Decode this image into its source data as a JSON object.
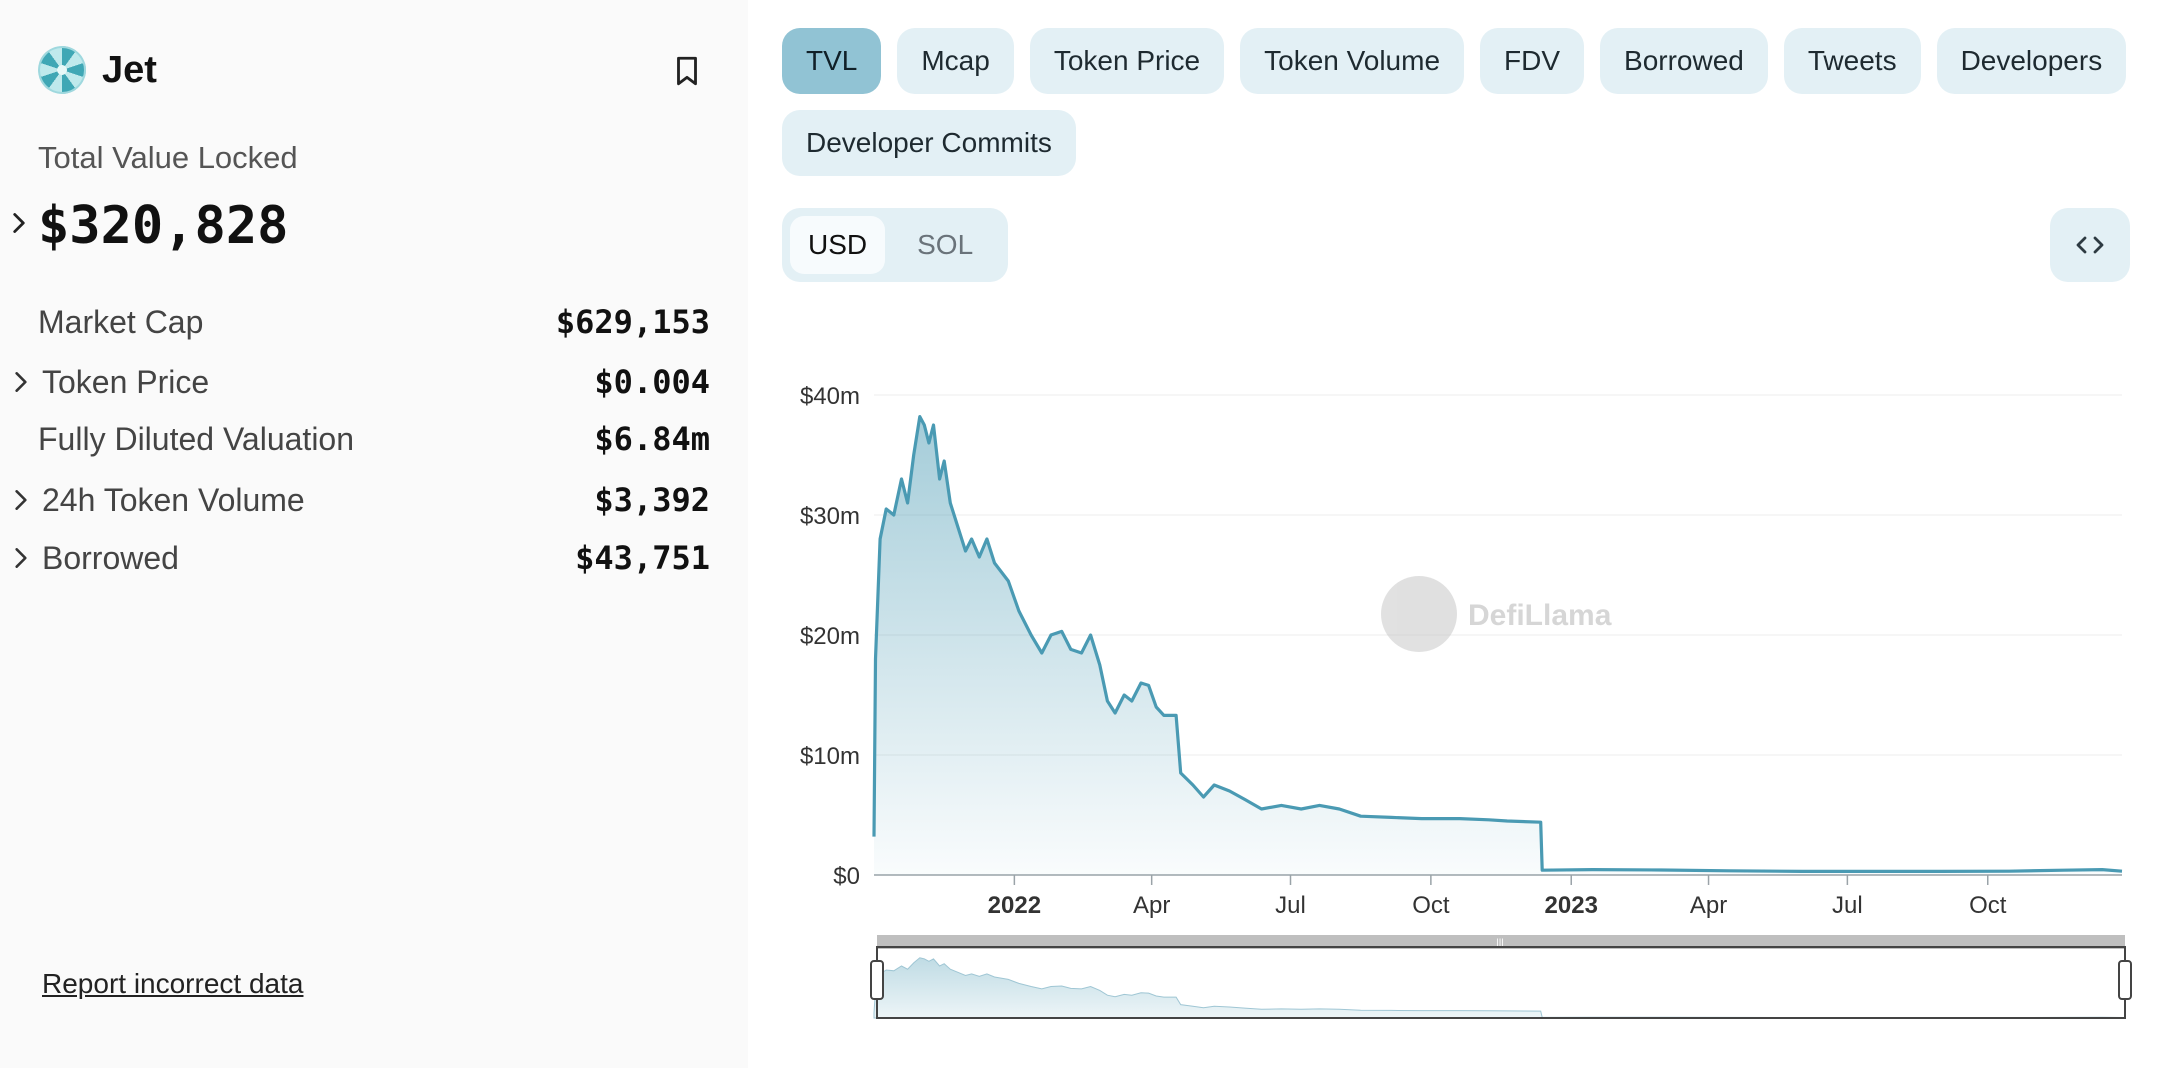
{
  "project": {
    "name": "Jet",
    "logo_icon": "jet-protocol-logo"
  },
  "summary": {
    "tvl_label": "Total Value Locked",
    "tvl_value": "$320,828",
    "stats": [
      {
        "label": "Market Cap",
        "value": "$629,153",
        "expandable": false
      },
      {
        "label": "Token Price",
        "value": "$0.004",
        "expandable": true
      },
      {
        "label": "Fully Diluted Valuation",
        "value": "$6.84m",
        "expandable": false
      },
      {
        "label": "24h Token Volume",
        "value": "$3,392",
        "expandable": true
      },
      {
        "label": "Borrowed",
        "value": "$43,751",
        "expandable": true
      }
    ],
    "report_link": "Report incorrect data"
  },
  "metric_tabs": [
    {
      "label": "TVL",
      "active": true
    },
    {
      "label": "Mcap",
      "active": false
    },
    {
      "label": "Token Price",
      "active": false
    },
    {
      "label": "Token Volume",
      "active": false
    },
    {
      "label": "FDV",
      "active": false
    },
    {
      "label": "Borrowed",
      "active": false
    },
    {
      "label": "Tweets",
      "active": false
    },
    {
      "label": "Developers",
      "active": false
    },
    {
      "label": "Developer Commits",
      "active": false
    }
  ],
  "denominations": [
    {
      "label": "USD",
      "active": true
    },
    {
      "label": "SOL",
      "active": false
    }
  ],
  "embed_icon": "code-brackets-icon",
  "watermarks": [
    "DefiLlama"
  ],
  "colors": {
    "line": "#4a9ab3",
    "tab_bg": "#e3f0f5",
    "tab_active": "#91c3d4"
  },
  "chart_data": {
    "type": "area",
    "series": [
      {
        "name": "TVL",
        "points": [
          [
            "2021-10-01",
            3.2
          ],
          [
            "2021-10-02",
            18
          ],
          [
            "2021-10-05",
            28
          ],
          [
            "2021-10-09",
            30.5
          ],
          [
            "2021-10-14",
            30
          ],
          [
            "2021-10-19",
            33
          ],
          [
            "2021-10-23",
            31
          ],
          [
            "2021-10-27",
            35
          ],
          [
            "2021-10-31",
            38.2
          ],
          [
            "2021-11-03",
            37.5
          ],
          [
            "2021-11-06",
            36
          ],
          [
            "2021-11-09",
            37.5
          ],
          [
            "2021-11-13",
            33
          ],
          [
            "2021-11-16",
            34.5
          ],
          [
            "2021-11-20",
            31
          ],
          [
            "2021-11-25",
            29
          ],
          [
            "2021-11-30",
            27
          ],
          [
            "2021-12-04",
            28
          ],
          [
            "2021-12-09",
            26.5
          ],
          [
            "2021-12-14",
            28
          ],
          [
            "2021-12-19",
            26
          ],
          [
            "2021-12-28",
            24.5
          ],
          [
            "2022-01-04",
            22
          ],
          [
            "2022-01-12",
            20
          ],
          [
            "2022-01-19",
            18.5
          ],
          [
            "2022-01-25",
            20
          ],
          [
            "2022-02-01",
            20.3
          ],
          [
            "2022-02-07",
            18.8
          ],
          [
            "2022-02-14",
            18.5
          ],
          [
            "2022-02-20",
            20
          ],
          [
            "2022-02-26",
            17.5
          ],
          [
            "2022-03-03",
            14.5
          ],
          [
            "2022-03-08",
            13.5
          ],
          [
            "2022-03-14",
            15
          ],
          [
            "2022-03-19",
            14.5
          ],
          [
            "2022-03-25",
            16
          ],
          [
            "2022-03-30",
            15.8
          ],
          [
            "2022-04-04",
            14
          ],
          [
            "2022-04-09",
            13.3
          ],
          [
            "2022-04-17",
            13.3
          ],
          [
            "2022-04-20",
            8.5
          ],
          [
            "2022-04-28",
            7.5
          ],
          [
            "2022-05-05",
            6.5
          ],
          [
            "2022-05-12",
            7.5
          ],
          [
            "2022-05-22",
            7
          ],
          [
            "2022-06-01",
            6.3
          ],
          [
            "2022-06-12",
            5.5
          ],
          [
            "2022-06-25",
            5.8
          ],
          [
            "2022-07-08",
            5.5
          ],
          [
            "2022-07-20",
            5.8
          ],
          [
            "2022-08-02",
            5.5
          ],
          [
            "2022-08-16",
            4.9
          ],
          [
            "2022-09-05",
            4.8
          ],
          [
            "2022-09-25",
            4.7
          ],
          [
            "2022-10-20",
            4.7
          ],
          [
            "2022-11-08",
            4.6
          ],
          [
            "2022-11-20",
            4.5
          ],
          [
            "2022-12-12",
            4.4
          ],
          [
            "2022-12-13",
            0.4
          ],
          [
            "2023-01-15",
            0.45
          ],
          [
            "2023-03-01",
            0.42
          ],
          [
            "2023-04-15",
            0.35
          ],
          [
            "2023-06-01",
            0.3
          ],
          [
            "2023-07-15",
            0.3
          ],
          [
            "2023-09-01",
            0.3
          ],
          [
            "2023-10-15",
            0.32
          ],
          [
            "2023-11-20",
            0.4
          ],
          [
            "2023-12-15",
            0.45
          ],
          [
            "2023-12-28",
            0.32
          ]
        ]
      }
    ],
    "x_ticks": [
      {
        "date": "2022-01-01",
        "label": "2022",
        "bold": true
      },
      {
        "date": "2022-04-01",
        "label": "Apr",
        "bold": false
      },
      {
        "date": "2022-07-01",
        "label": "Jul",
        "bold": false
      },
      {
        "date": "2022-10-01",
        "label": "Oct",
        "bold": false
      },
      {
        "date": "2023-01-01",
        "label": "2023",
        "bold": true
      },
      {
        "date": "2023-04-01",
        "label": "Apr",
        "bold": false
      },
      {
        "date": "2023-07-01",
        "label": "Jul",
        "bold": false
      },
      {
        "date": "2023-10-01",
        "label": "Oct",
        "bold": false
      }
    ],
    "y_ticks": [
      {
        "value": 0,
        "label": "$0"
      },
      {
        "value": 10,
        "label": "$10m"
      },
      {
        "value": 20,
        "label": "$20m"
      },
      {
        "value": 30,
        "label": "$30m"
      },
      {
        "value": 40,
        "label": "$40m"
      }
    ],
    "xlim": [
      "2021-10-01",
      "2023-12-28"
    ],
    "ylim": [
      0,
      40
    ],
    "grid": true,
    "zoom_slider": true
  }
}
